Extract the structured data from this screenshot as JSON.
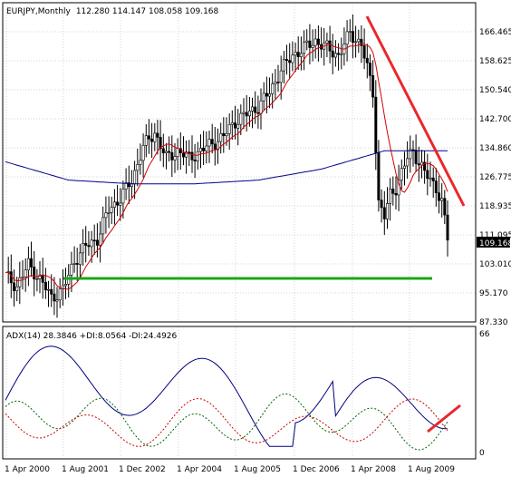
{
  "price_panel": {
    "title": "EURJPY,Monthly",
    "ohlc": "112.280 114.147 108.058 109.168",
    "current_price": "109.168",
    "y_axis_labels": [
      "166.465",
      "158.625",
      "150.540",
      "142.700",
      "134.860",
      "126.775",
      "118.935",
      "111.095",
      "103.010",
      "95.170",
      "87.330"
    ]
  },
  "indicator_panel": {
    "title": "ADX(14) 28.3846 +DI:8.0564 -DI:24.4926",
    "y_axis_labels": [
      "66",
      "0"
    ]
  },
  "x_axis_labels": [
    "1 Apr 2000",
    "1 Aug 2001",
    "1 Dec 2002",
    "1 Apr 2004",
    "1 Aug 2005",
    "1 Dec 2006",
    "1 Apr 2008",
    "1 Aug 2009"
  ],
  "colors": {
    "price_bars": "#000000",
    "ma_short": "#d40000",
    "ma_long": "#00008b",
    "trendline": "#e8282b",
    "support_line": "#19a619",
    "adx": "#000080",
    "plus_di": "#006400",
    "minus_di": "#cc0000",
    "grid": "#c8c8c8"
  },
  "chart_data": {
    "type": "line",
    "x": [
      "Apr 2000",
      "Aug 2001",
      "Dec 2002",
      "Apr 2004",
      "Aug 2005",
      "Dec 2006",
      "Apr 2008",
      "Aug 2009"
    ],
    "series": [
      {
        "values": [
          97,
          112,
          140,
          131,
          142,
          163,
          132,
          109
        ]
      },
      {
        "values": [
          131,
          126,
          125,
          125,
          126,
          129,
          134,
          134
        ]
      }
    ],
    "ylim": [
      87.33,
      166.465
    ],
    "grid": true
  }
}
